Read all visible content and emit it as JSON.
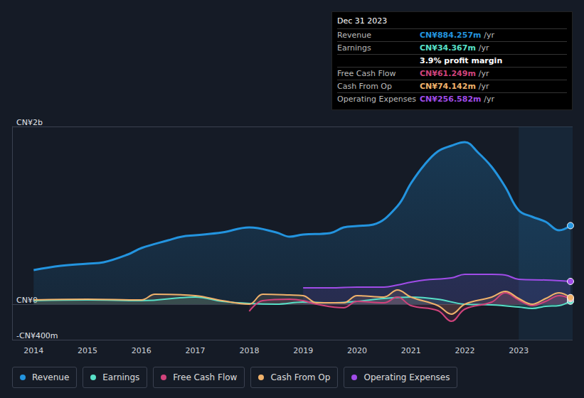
{
  "chart_data": {
    "type": "line",
    "xlim": [
      2013.6,
      2024
    ],
    "xticks": [
      2014,
      2015,
      2016,
      2017,
      2018,
      2019,
      2020,
      2021,
      2022,
      2023
    ],
    "ylim": [
      -400,
      2000
    ],
    "yticks": [
      {
        "value": -400,
        "label": "-CN¥400m"
      },
      {
        "value": 0,
        "label": "CN¥0"
      },
      {
        "value": 2000,
        "label": "CN¥2b"
      }
    ],
    "grid": true,
    "legend": "bottom",
    "shaded_region": {
      "x": [
        2023,
        2024
      ]
    },
    "tooltip": {
      "date": "Dec 31 2023",
      "rows": [
        {
          "label": "Revenue",
          "value": "CN¥884.257m",
          "unit": "/yr"
        },
        {
          "label": "Earnings",
          "value": "CN¥34.367m",
          "unit": "/yr",
          "note": "3.9% profit margin"
        },
        {
          "label": "Free Cash Flow",
          "value": "CN¥61.249m",
          "unit": "/yr"
        },
        {
          "label": "Cash From Op",
          "value": "CN¥74.142m",
          "unit": "/yr"
        },
        {
          "label": "Operating Expenses",
          "value": "CN¥256.582m",
          "unit": "/yr"
        }
      ]
    },
    "series": [
      {
        "name": "Revenue",
        "color": "#2394df",
        "x": [
          2014,
          2014.5,
          2015,
          2015.3,
          2015.75,
          2016,
          2016.5,
          2016.75,
          2017,
          2017.5,
          2018,
          2018.5,
          2018.75,
          2019,
          2019.5,
          2019.75,
          2020,
          2020.3,
          2020.75,
          2021,
          2021.25,
          2021.5,
          2021.75,
          2022,
          2022.25,
          2022.5,
          2022.75,
          2023,
          2023.25,
          2023.5,
          2023.75,
          2023.96
        ],
        "values": [
          384,
          432,
          456,
          472,
          560,
          632,
          720,
          760,
          776,
          808,
          864,
          808,
          760,
          784,
          800,
          864,
          880,
          896,
          1104,
          1360,
          1568,
          1720,
          1784,
          1824,
          1704,
          1544,
          1320,
          1056,
          984,
          928,
          832,
          884.257
        ]
      },
      {
        "name": "Earnings",
        "color": "#58e0c8",
        "x": [
          2014,
          2015,
          2016,
          2017,
          2017.5,
          2018,
          2018.5,
          2019,
          2019.5,
          2020,
          2020.5,
          2021,
          2021.5,
          2022,
          2022.5,
          2023,
          2023.25,
          2023.5,
          2023.75,
          2023.96
        ],
        "values": [
          40,
          48,
          40,
          80,
          32,
          8,
          0,
          24,
          16,
          32,
          64,
          80,
          56,
          0,
          -8,
          -32,
          -48,
          -24,
          -16,
          34.367
        ]
      },
      {
        "name": "Free Cash Flow",
        "color": "#d1437c",
        "x": [
          2018,
          2018.25,
          2018.75,
          2019,
          2019.25,
          2019.75,
          2020,
          2020.5,
          2020.75,
          2021,
          2021.5,
          2021.75,
          2022,
          2022.5,
          2022.75,
          2023,
          2023.25,
          2023.5,
          2023.75,
          2023.96
        ],
        "values": [
          -80,
          40,
          56,
          40,
          0,
          -40,
          32,
          16,
          80,
          -16,
          -72,
          -192,
          -56,
          24,
          128,
          48,
          -16,
          32,
          96,
          61.249
        ]
      },
      {
        "name": "Cash From Op",
        "color": "#f0b26b",
        "x": [
          2014,
          2015,
          2016,
          2016.25,
          2017,
          2017.5,
          2018,
          2018.25,
          2018.75,
          2019,
          2019.25,
          2019.75,
          2020,
          2020.5,
          2020.75,
          2021,
          2021.5,
          2021.75,
          2022,
          2022.5,
          2022.75,
          2023,
          2023.25,
          2023.5,
          2023.75,
          2023.96
        ],
        "values": [
          48,
          56,
          48,
          112,
          96,
          40,
          0,
          112,
          104,
          96,
          16,
          16,
          96,
          80,
          160,
          80,
          -16,
          -112,
          0,
          80,
          144,
          64,
          0,
          64,
          128,
          74.142
        ]
      },
      {
        "name": "Operating Expenses",
        "color": "#a04ce8",
        "x": [
          2019,
          2019.5,
          2020,
          2020.5,
          2020.75,
          2021,
          2021.25,
          2021.75,
          2022,
          2022.5,
          2022.75,
          2023,
          2023.5,
          2023.96
        ],
        "values": [
          184,
          184,
          192,
          192,
          216,
          248,
          272,
          296,
          336,
          336,
          328,
          280,
          272,
          256.582
        ]
      }
    ]
  }
}
